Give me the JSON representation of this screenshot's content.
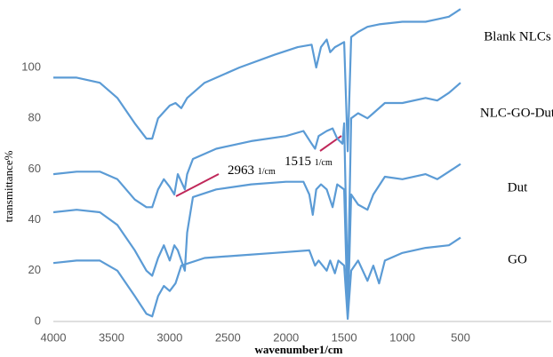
{
  "chart_data": {
    "type": "line",
    "x_label": "wavenumber1/cm",
    "y_label": "transmittance%",
    "xlim": [
      4000,
      500
    ],
    "xticks": [
      4000,
      3500,
      3000,
      2500,
      2000,
      1500,
      1000,
      500
    ],
    "ylim": [
      0,
      124
    ],
    "yticks": [
      0,
      20,
      40,
      60,
      80,
      100
    ],
    "series": [
      {
        "name": "Blank NLCs",
        "color": "#5b9bd5",
        "x": [
          4000,
          3800,
          3600,
          3450,
          3300,
          3200,
          3150,
          3100,
          3000,
          2950,
          2900,
          2850,
          2700,
          2400,
          2100,
          1900,
          1780,
          1740,
          1700,
          1650,
          1620,
          1580,
          1500,
          1470,
          1440,
          1380,
          1300,
          1200,
          1000,
          800,
          700,
          600,
          500
        ],
        "values": [
          96,
          96,
          94,
          88,
          78,
          72,
          72,
          80,
          85,
          86,
          84,
          88,
          94,
          100,
          105,
          108,
          109,
          100,
          108,
          111,
          106,
          108,
          110,
          67,
          112,
          114,
          116,
          117,
          118,
          118,
          119,
          120,
          123
        ]
      },
      {
        "name": "NLC-GO-Dut",
        "color": "#5b9bd5",
        "x": [
          4000,
          3800,
          3600,
          3450,
          3300,
          3200,
          3150,
          3100,
          3050,
          3000,
          2960,
          2930,
          2870,
          2850,
          2800,
          2600,
          2300,
          2000,
          1850,
          1780,
          1750,
          1720,
          1650,
          1600,
          1560,
          1515,
          1500,
          1470,
          1440,
          1380,
          1300,
          1250,
          1150,
          1000,
          800,
          700,
          600,
          500
        ],
        "values": [
          58,
          59,
          59,
          56,
          48,
          45,
          45,
          52,
          56,
          53,
          50,
          58,
          52,
          58,
          64,
          68,
          71,
          73,
          75,
          70,
          68,
          73,
          75,
          76,
          72,
          70,
          78,
          11,
          80,
          82,
          80,
          82,
          86,
          86,
          88,
          87,
          90,
          94
        ]
      },
      {
        "name": "Dut",
        "color": "#5b9bd5",
        "x": [
          4000,
          3800,
          3600,
          3450,
          3300,
          3200,
          3150,
          3100,
          3050,
          3000,
          2960,
          2930,
          2870,
          2850,
          2800,
          2600,
          2300,
          2000,
          1850,
          1800,
          1770,
          1740,
          1700,
          1650,
          1600,
          1560,
          1500,
          1470,
          1440,
          1380,
          1300,
          1250,
          1150,
          1000,
          800,
          700,
          600,
          500
        ],
        "values": [
          43,
          44,
          43,
          38,
          28,
          20,
          18,
          25,
          30,
          24,
          30,
          28,
          20,
          35,
          49,
          52,
          54,
          55,
          55,
          50,
          42,
          52,
          54,
          52,
          45,
          54,
          52,
          2,
          50,
          46,
          44,
          50,
          57,
          56,
          58,
          56,
          59,
          62
        ]
      },
      {
        "name": "GO",
        "color": "#5b9bd5",
        "x": [
          4000,
          3800,
          3600,
          3450,
          3300,
          3200,
          3150,
          3100,
          3050,
          3000,
          2950,
          2900,
          2700,
          2400,
          2100,
          1800,
          1750,
          1720,
          1650,
          1620,
          1580,
          1550,
          1500,
          1470,
          1440,
          1380,
          1300,
          1250,
          1200,
          1150,
          1000,
          800,
          600,
          500
        ],
        "values": [
          23,
          24,
          24,
          20,
          10,
          3,
          2,
          10,
          14,
          12,
          15,
          22,
          25,
          26,
          27,
          28,
          22,
          24,
          20,
          24,
          19,
          24,
          22,
          1,
          20,
          24,
          16,
          22,
          15,
          24,
          27,
          29,
          30,
          33
        ]
      }
    ],
    "annotations": [
      {
        "text": "2963",
        "unit": "1/cm"
      },
      {
        "text": "1515",
        "unit": "1/cm"
      }
    ]
  }
}
